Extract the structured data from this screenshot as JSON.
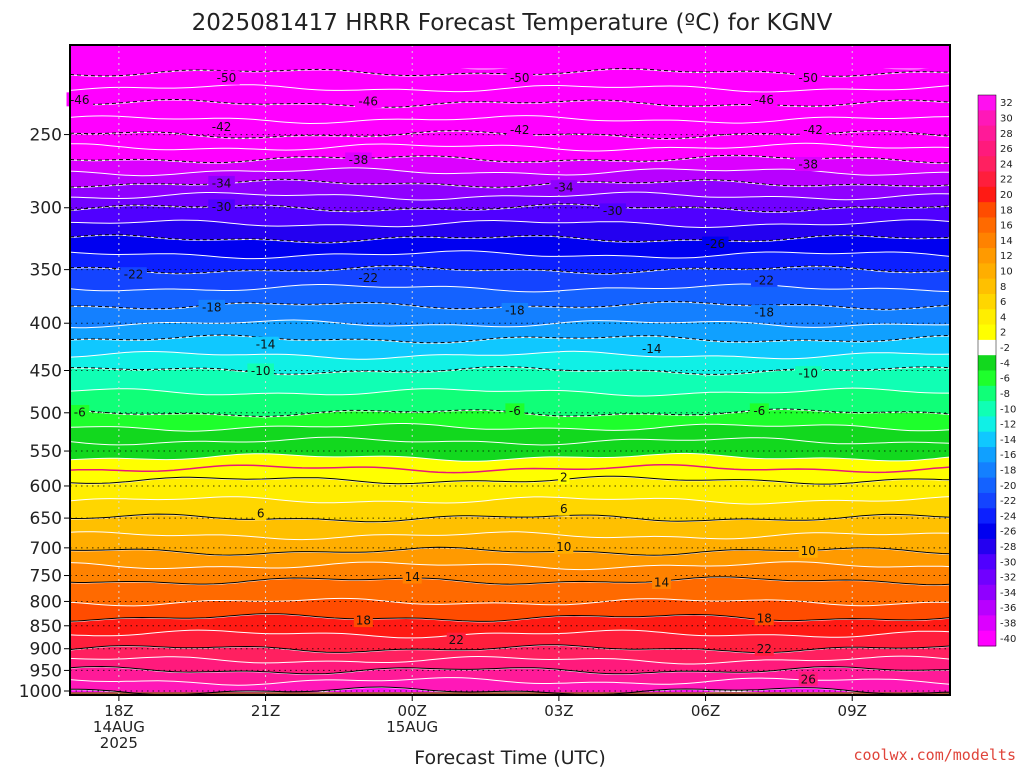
{
  "title": "2025081417 HRRR Forecast Temperature (ºC) for KGNV",
  "credit": "coolwx.com/modelts",
  "chart_data": {
    "type": "heatmap",
    "title": "2025081417 HRRR Forecast Temperature (ºC) for KGNV",
    "xlabel": "Forecast Time (UTC)",
    "ylabel": "",
    "x_ticks": [
      {
        "hour": 1,
        "labels": [
          "18Z",
          "14AUG",
          "2025"
        ]
      },
      {
        "hour": 4,
        "labels": [
          "21Z"
        ]
      },
      {
        "hour": 7,
        "labels": [
          "00Z",
          "15AUG"
        ]
      },
      {
        "hour": 10,
        "labels": [
          "03Z"
        ]
      },
      {
        "hour": 13,
        "labels": [
          "06Z"
        ]
      },
      {
        "hour": 16,
        "labels": [
          "09Z"
        ]
      }
    ],
    "x_range_hours": [
      0,
      18
    ],
    "y_axis": {
      "quantity": "pressure (hPa)",
      "scale": "log",
      "reversed": true,
      "range": [
        1010,
        200
      ],
      "ticks": [
        250,
        300,
        350,
        400,
        450,
        500,
        550,
        600,
        650,
        700,
        750,
        800,
        850,
        900,
        950,
        1000
      ]
    },
    "temperature_profile": [
      {
        "p": 210,
        "t": -51
      },
      {
        "p": 250,
        "t": -42
      },
      {
        "p": 300,
        "t": -30
      },
      {
        "p": 350,
        "t": -22
      },
      {
        "p": 400,
        "t": -16
      },
      {
        "p": 450,
        "t": -10
      },
      {
        "p": 500,
        "t": -6
      },
      {
        "p": 550,
        "t": -0.5
      },
      {
        "p": 600,
        "t": 2.5
      },
      {
        "p": 650,
        "t": 6
      },
      {
        "p": 700,
        "t": 9.5
      },
      {
        "p": 750,
        "t": 13.5
      },
      {
        "p": 800,
        "t": 16
      },
      {
        "p": 850,
        "t": 19
      },
      {
        "p": 900,
        "t": 22
      },
      {
        "p": 950,
        "t": 26
      },
      {
        "p": 1000,
        "t": 30
      },
      {
        "p": 1010,
        "t": 31
      }
    ],
    "contour_labels": [
      {
        "value": "-50",
        "hour": 3.2,
        "p": 217
      },
      {
        "value": "-50",
        "hour": 9.2,
        "p": 217
      },
      {
        "value": "-50",
        "hour": 15.1,
        "p": 217
      },
      {
        "value": "-46",
        "hour": 0.2,
        "p": 229
      },
      {
        "value": "-46",
        "hour": 6.1,
        "p": 230
      },
      {
        "value": "-46",
        "hour": 14.2,
        "p": 229
      },
      {
        "value": "-42",
        "hour": 3.1,
        "p": 245
      },
      {
        "value": "-42",
        "hour": 9.2,
        "p": 247
      },
      {
        "value": "-42",
        "hour": 15.2,
        "p": 247
      },
      {
        "value": "-38",
        "hour": 5.9,
        "p": 266
      },
      {
        "value": "-38",
        "hour": 15.1,
        "p": 269
      },
      {
        "value": "-34",
        "hour": 3.1,
        "p": 282
      },
      {
        "value": "-34",
        "hour": 10.1,
        "p": 285
      },
      {
        "value": "-30",
        "hour": 3.1,
        "p": 299
      },
      {
        "value": "-30",
        "hour": 11.1,
        "p": 302
      },
      {
        "value": "-26",
        "hour": 13.2,
        "p": 328
      },
      {
        "value": "-22",
        "hour": 1.3,
        "p": 354
      },
      {
        "value": "-22",
        "hour": 6.1,
        "p": 357
      },
      {
        "value": "-22",
        "hour": 14.2,
        "p": 359
      },
      {
        "value": "-18",
        "hour": 2.9,
        "p": 384
      },
      {
        "value": "-18",
        "hour": 9.1,
        "p": 387
      },
      {
        "value": "-18",
        "hour": 14.2,
        "p": 389
      },
      {
        "value": "-14",
        "hour": 4.0,
        "p": 421
      },
      {
        "value": "-14",
        "hour": 11.9,
        "p": 426
      },
      {
        "value": "-10",
        "hour": 3.9,
        "p": 450
      },
      {
        "value": "-10",
        "hour": 15.1,
        "p": 453
      },
      {
        "value": "-6",
        "hour": 0.2,
        "p": 499
      },
      {
        "value": "-6",
        "hour": 9.1,
        "p": 497
      },
      {
        "value": "-6",
        "hour": 14.1,
        "p": 497
      },
      {
        "value": "2",
        "hour": 10.1,
        "p": 587
      },
      {
        "value": "6",
        "hour": 3.9,
        "p": 642
      },
      {
        "value": "6",
        "hour": 10.1,
        "p": 635
      },
      {
        "value": "10",
        "hour": 10.1,
        "p": 698
      },
      {
        "value": "10",
        "hour": 15.1,
        "p": 705
      },
      {
        "value": "14",
        "hour": 7.0,
        "p": 752
      },
      {
        "value": "14",
        "hour": 12.1,
        "p": 762
      },
      {
        "value": "18",
        "hour": 6.0,
        "p": 838
      },
      {
        "value": "18",
        "hour": 14.2,
        "p": 834
      },
      {
        "value": "22",
        "hour": 7.9,
        "p": 880
      },
      {
        "value": "22",
        "hour": 14.2,
        "p": 900
      },
      {
        "value": "26",
        "hour": 15.1,
        "p": 970
      }
    ],
    "colorbar": {
      "labels": [
        "32",
        "30",
        "28",
        "26",
        "24",
        "22",
        "20",
        "18",
        "16",
        "14",
        "12",
        "10",
        "8",
        "6",
        "4",
        "2",
        "-2",
        "-4",
        "-6",
        "-8",
        "-10",
        "-12",
        "-14",
        "-16",
        "-18",
        "-20",
        "-22",
        "-24",
        "-26",
        "-28",
        "-30",
        "-32",
        "-34",
        "-36",
        "-38",
        "-40"
      ],
      "colors": [
        "#ff10f0",
        "#ff18b8",
        "#ff1a98",
        "#ff1a7c",
        "#ff2060",
        "#ff1e3c",
        "#ff1a14",
        "#ff4c00",
        "#ff6a00",
        "#ff8200",
        "#ff9a00",
        "#ffae00",
        "#ffc000",
        "#ffd600",
        "#ffee00",
        "#ffff00",
        "#ffffff",
        "#12d81e",
        "#1eff2c",
        "#10ff78",
        "#10ffb4",
        "#10f0e6",
        "#10c8ff",
        "#10a0ff",
        "#1480ff",
        "#1462ff",
        "#1444ff",
        "#0c20ff",
        "#0000f0",
        "#2400f0",
        "#5000ff",
        "#7000ff",
        "#9000ff",
        "#b800ff",
        "#dc00ff",
        "#ff00ff"
      ]
    },
    "grid": true,
    "legend": "right"
  }
}
